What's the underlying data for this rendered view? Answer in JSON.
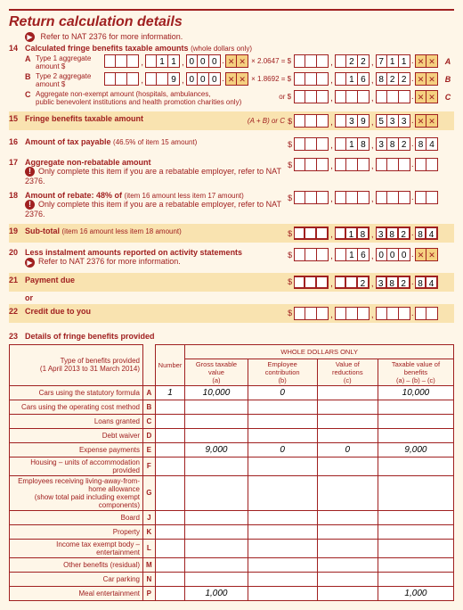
{
  "title": "Return calculation details",
  "refer_nat": "Refer to NAT 2376 for more information.",
  "item14": {
    "num": "14",
    "label": "Calculated fringe benefits taxable amounts",
    "sub": "(whole dollars only)",
    "rowA": {
      "letter": "A",
      "label": "Type 1 aggregate amount $",
      "d": [
        "",
        "",
        "",
        "",
        "1",
        "1",
        "0",
        "0",
        "0"
      ],
      "mult": "× 2.0647 = $",
      "r": [
        "",
        "",
        "",
        "",
        "2",
        "2",
        "7",
        "1",
        "1"
      ],
      "tag": "A"
    },
    "rowB": {
      "letter": "B",
      "label": "Type 2 aggregate amount $",
      "d": [
        "",
        "",
        "",
        "",
        "",
        "9",
        "0",
        "0",
        "0"
      ],
      "mult": "× 1.8692 = $",
      "r": [
        "",
        "",
        "",
        "",
        "1",
        "6",
        "8",
        "2",
        "2"
      ],
      "tag": "B"
    },
    "rowC": {
      "letter": "C",
      "label": "Aggregate non-exempt amount (hospitals, ambulances,",
      "label2": "public benevolent institutions and health promotion charities only)",
      "or": "or $",
      "r": [
        "",
        "",
        "",
        "",
        "",
        "",
        "",
        "",
        ""
      ],
      "tag": "C"
    }
  },
  "item15": {
    "num": "15",
    "label": "Fringe benefits taxable amount",
    "formula": "(A + B) or C  $",
    "r": [
      "",
      "",
      "",
      "",
      "3",
      "9",
      "5",
      "3",
      "3"
    ]
  },
  "item16": {
    "num": "16",
    "label": "Amount of tax payable",
    "sub": "(46.5% of item 15 amount)",
    "r": [
      "",
      "",
      "",
      "",
      "1",
      "8",
      "3",
      "8",
      "2"
    ],
    "cents": [
      "8",
      "4"
    ]
  },
  "item17": {
    "num": "17",
    "label": "Aggregate non-rebatable amount",
    "note": "Only complete this item if you are a rebatable employer, refer to NAT 2376.",
    "r": [
      "",
      "",
      "",
      "",
      "",
      "",
      "",
      "",
      ""
    ],
    "cents": [
      "",
      ""
    ]
  },
  "item18": {
    "num": "18",
    "label": "Amount of rebate: 48% of",
    "sub": "(item 16 amount less item 17 amount)",
    "note": "Only complete this item if you are a rebatable employer, refer to NAT 2376.",
    "r": [
      "",
      "",
      "",
      "",
      "",
      "",
      "",
      "",
      ""
    ],
    "cents": [
      "",
      ""
    ]
  },
  "item19": {
    "num": "19",
    "label": "Sub-total",
    "sub": "(item 16 amount less item 18 amount)",
    "r": [
      "",
      "",
      "",
      "",
      "1",
      "8",
      "3",
      "8",
      "2"
    ],
    "cents": [
      "8",
      "4"
    ]
  },
  "item20": {
    "num": "20",
    "label": "Less instalment amounts reported on activity statements",
    "note": "Refer to NAT 2376 for more information.",
    "r": [
      "",
      "",
      "",
      "",
      "1",
      "6",
      "0",
      "0",
      "0"
    ]
  },
  "item21": {
    "num": "21",
    "label": "Payment due",
    "r": [
      "",
      "",
      "",
      "",
      "",
      "2",
      "3",
      "8",
      "2"
    ],
    "cents": [
      "8",
      "4"
    ]
  },
  "or_label": "or",
  "item22": {
    "num": "22",
    "label": "Credit due to you",
    "r": [
      "",
      "",
      "",
      "",
      "",
      "",
      "",
      "",
      ""
    ],
    "cents": [
      "",
      ""
    ]
  },
  "item23": {
    "num": "23",
    "label": "Details of fringe benefits provided"
  },
  "table": {
    "header_span": "WHOLE DOLLARS ONLY",
    "h1": "Type of benefits provided\n(1 April 2013 to 31 March 2014)",
    "h2": "Number",
    "h3": "Gross taxable value\n(a)",
    "h4": "Employee contribution\n(b)",
    "h5": "Value of reductions\n(c)",
    "h6": "Taxable value of benefits\n(a) – (b) – (c)",
    "rows": [
      {
        "label": "Cars using the statutory formula",
        "ltr": "A",
        "num": "1",
        "a": "10,000",
        "b": "0",
        "c": "",
        "d": "10,000"
      },
      {
        "label": "Cars using the operating cost method",
        "ltr": "B",
        "num": "",
        "a": "",
        "b": "",
        "c": "",
        "d": ""
      },
      {
        "label": "Loans granted",
        "ltr": "C",
        "num": "",
        "a": "",
        "b": "",
        "c": "",
        "d": ""
      },
      {
        "label": "Debt waiver",
        "ltr": "D",
        "num": "",
        "a": "",
        "b": "",
        "c": "",
        "d": ""
      },
      {
        "label": "Expense payments",
        "ltr": "E",
        "num": "",
        "a": "9,000",
        "b": "0",
        "c": "0",
        "d": "9,000"
      },
      {
        "label": "Housing – units of accommodation provided",
        "ltr": "F",
        "num": "",
        "a": "",
        "b": "",
        "c": "",
        "d": ""
      },
      {
        "label": "Employees receiving living-away-from-home allowance\n(show total paid including exempt components)",
        "ltr": "G",
        "num": "",
        "a": "",
        "b": "",
        "c": "",
        "d": ""
      },
      {
        "label": "Board",
        "ltr": "J",
        "num": "",
        "a": "",
        "b": "",
        "c": "",
        "d": ""
      },
      {
        "label": "Property",
        "ltr": "K",
        "num": "",
        "a": "",
        "b": "",
        "c": "",
        "d": ""
      },
      {
        "label": "Income tax exempt body – entertainment",
        "ltr": "L",
        "num": "",
        "a": "",
        "b": "",
        "c": "",
        "d": ""
      },
      {
        "label": "Other benefits (residual)",
        "ltr": "M",
        "num": "",
        "a": "",
        "b": "",
        "c": "",
        "d": ""
      },
      {
        "label": "Car parking",
        "ltr": "N",
        "num": "",
        "a": "",
        "b": "",
        "c": "",
        "d": ""
      },
      {
        "label": "Meal entertainment",
        "ltr": "P",
        "num": "",
        "a": "1,000",
        "b": "",
        "c": "",
        "d": "1,000"
      }
    ]
  },
  "colors": {
    "text": "#a02020",
    "bg": "#fef6e8",
    "highlight": "#f9e3b0",
    "box_bg": "#ffffff",
    "xbox_bg": "#f5d080"
  }
}
